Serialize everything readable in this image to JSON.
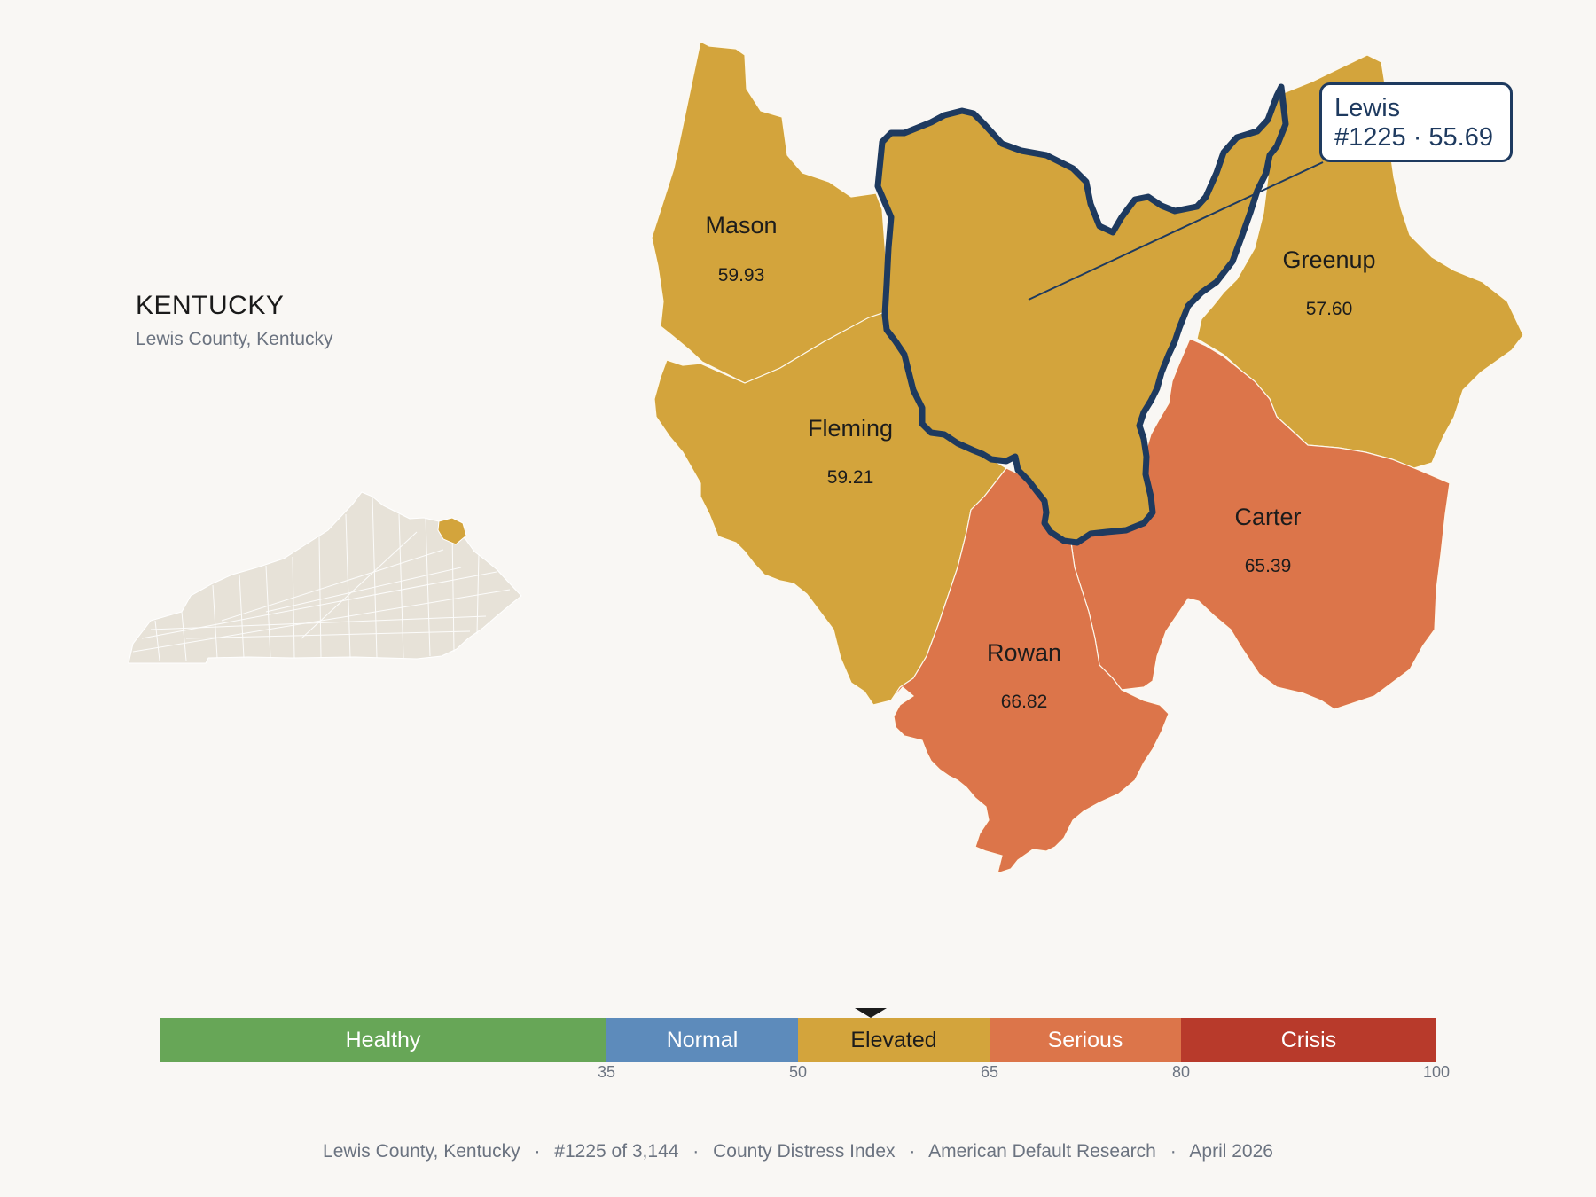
{
  "state": {
    "title": "KENTUCKY",
    "subtitle": "Lewis County, Kentucky"
  },
  "colors": {
    "healthy": "#67a657",
    "normal": "#5d8bbb",
    "elevated": "#d3a43c",
    "serious": "#dc754a",
    "crisis": "#b83a2b",
    "highlight_outline": "#1e3a5f",
    "state_fill": "#e7e2d8"
  },
  "counties": [
    {
      "name": "Mason",
      "value": "59.93",
      "category": "Elevated"
    },
    {
      "name": "Fleming",
      "value": "59.21",
      "category": "Elevated"
    },
    {
      "name": "Greenup",
      "value": "57.60",
      "category": "Elevated"
    },
    {
      "name": "Carter",
      "value": "65.39",
      "category": "Serious"
    },
    {
      "name": "Rowan",
      "value": "66.82",
      "category": "Serious"
    },
    {
      "name": "Lewis",
      "value": "55.69",
      "category": "Elevated",
      "highlighted": true
    }
  ],
  "callout": {
    "line1": "Lewis",
    "line2": "#1225 · 55.69"
  },
  "legend": {
    "segments": [
      {
        "label": "Healthy",
        "from": 0,
        "to": 35
      },
      {
        "label": "Normal",
        "from": 35,
        "to": 50
      },
      {
        "label": "Elevated",
        "from": 50,
        "to": 65
      },
      {
        "label": "Serious",
        "from": 65,
        "to": 80
      },
      {
        "label": "Crisis",
        "from": 80,
        "to": 100
      }
    ],
    "ticks": [
      "35",
      "50",
      "65",
      "80",
      "100"
    ],
    "marker_value": 55.69
  },
  "footer": {
    "county": "Lewis County, Kentucky",
    "rank": "#1225 of 3,144",
    "index": "County Distress Index",
    "source": "American Default Research",
    "date": "April 2026",
    "separator": "·"
  }
}
